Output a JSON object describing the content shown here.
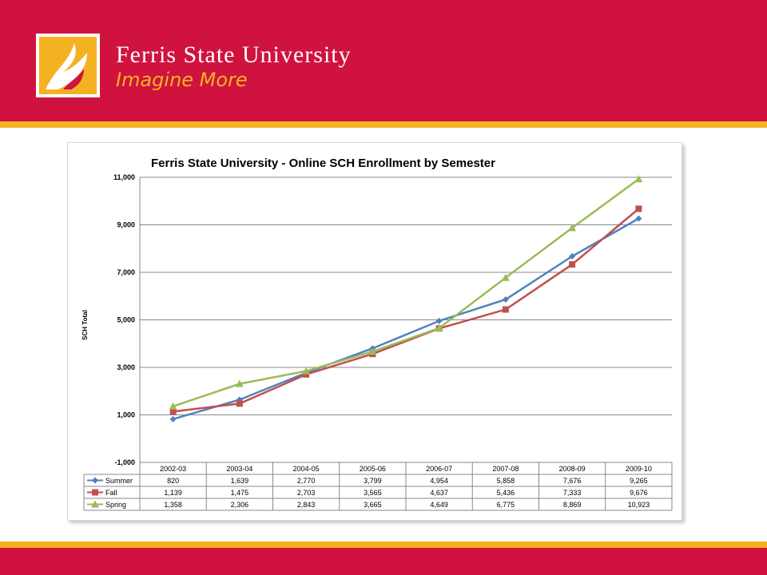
{
  "header": {
    "brand_name": "Ferris State University",
    "brand_tagline": "Imagine More",
    "colors": {
      "red": "#d0123f",
      "gold": "#f4b223"
    },
    "logo_icon": "flame-icon"
  },
  "chart_data": {
    "type": "line",
    "title": "Ferris State University - Online SCH Enrollment by Semester",
    "xlabel": "",
    "ylabel": "SCH Total",
    "ylim": [
      -1000,
      11000
    ],
    "yticks": [
      "11,000",
      "9,000",
      "7,000",
      "5,000",
      "3,000",
      "1,000",
      "-1,000"
    ],
    "ytick_values": [
      11000,
      9000,
      7000,
      5000,
      3000,
      1000,
      -1000
    ],
    "grid": true,
    "legend": "data-table",
    "categories": [
      "2002-03",
      "2003-04",
      "2004-05",
      "2005-06",
      "2006-07",
      "2007-08",
      "2008-09",
      "2009-10"
    ],
    "series": [
      {
        "name": "Summer",
        "color": "#4f81bd",
        "marker": "diamond",
        "values": [
          820,
          1639,
          2770,
          3799,
          4954,
          5858,
          7676,
          9265
        ],
        "labels": [
          "820",
          "1,639",
          "2,770",
          "3,799",
          "4,954",
          "5,858",
          "7,676",
          "9,265"
        ]
      },
      {
        "name": "Fall",
        "color": "#c0504d",
        "marker": "square",
        "values": [
          1139,
          1475,
          2703,
          3565,
          4637,
          5436,
          7333,
          9676
        ],
        "labels": [
          "1,139",
          "1,475",
          "2,703",
          "3,565",
          "4,637",
          "5,436",
          "7,333",
          "9,676"
        ]
      },
      {
        "name": "Spring",
        "color": "#9bbb59",
        "marker": "triangle",
        "values": [
          1358,
          2306,
          2843,
          3665,
          4649,
          6775,
          8869,
          10923
        ],
        "labels": [
          "1,358",
          "2,306",
          "2,843",
          "3,665",
          "4,649",
          "6,775",
          "8,869",
          "10,923"
        ]
      }
    ]
  }
}
